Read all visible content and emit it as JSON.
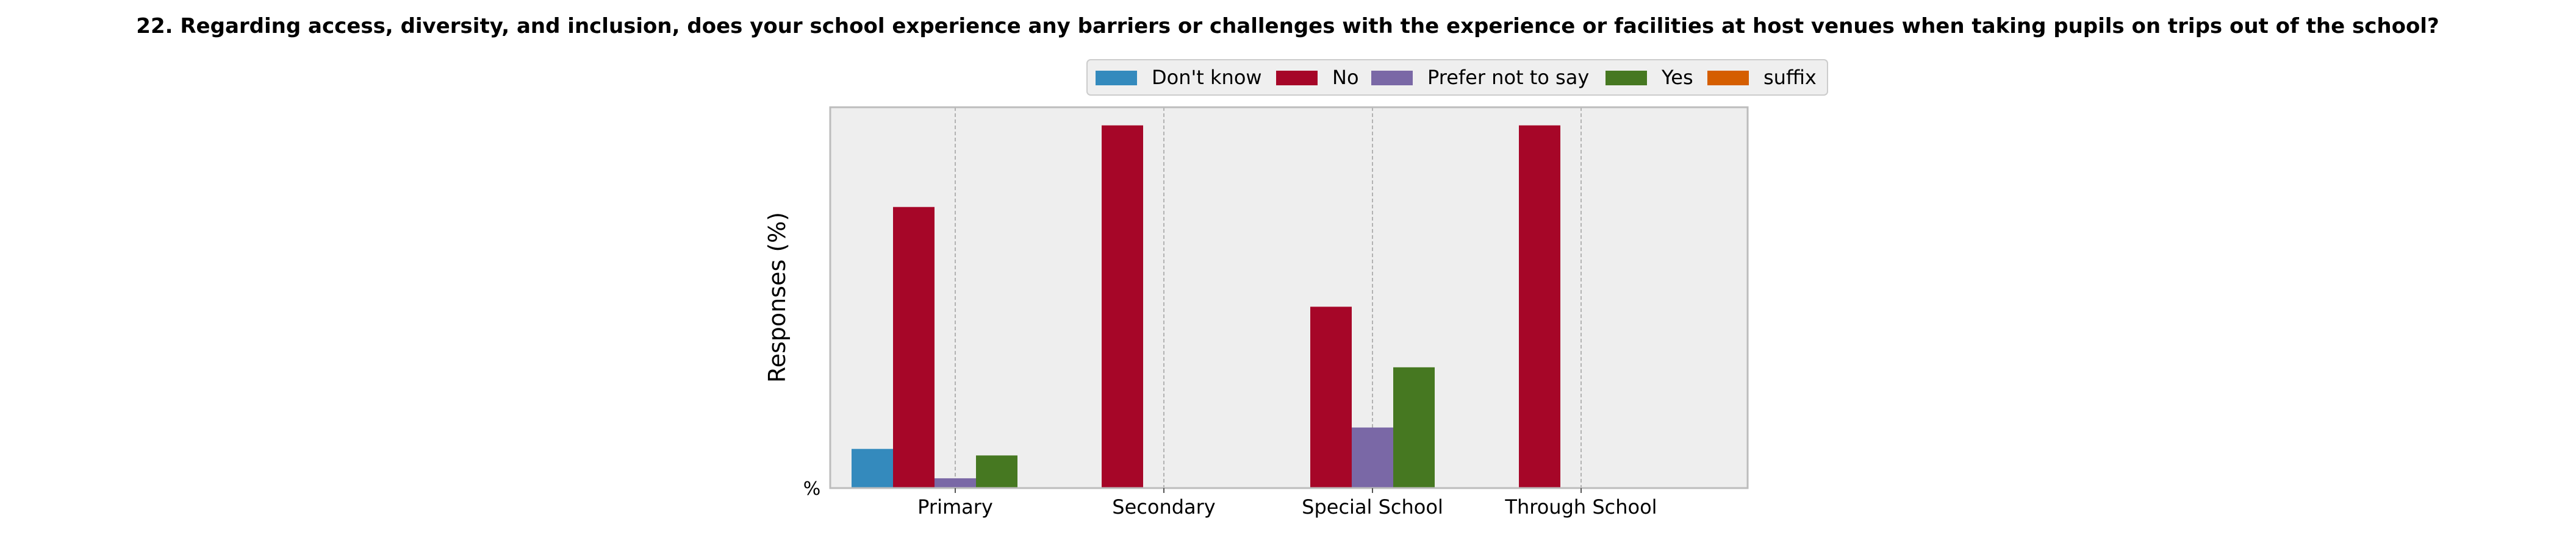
{
  "chart_data": {
    "type": "bar",
    "title": "22. Regarding access, diversity, and inclusion, does your school experience any barriers or challenges with the experience or facilities at host venues when taking pupils on trips out of the school?",
    "xlabel": "",
    "ylabel": "Responses (%)",
    "y_tick_label": "%",
    "categories": [
      "Primary",
      "Secondary",
      "Special School",
      "Through School"
    ],
    "series": [
      {
        "name": "Don't know",
        "color": "#348ABD",
        "values": [
          10.8,
          0,
          0,
          0
        ]
      },
      {
        "name": "No",
        "color": "#A60628",
        "values": [
          77.5,
          100,
          50,
          100
        ]
      },
      {
        "name": "Prefer not to say",
        "color": "#7A68A6",
        "values": [
          2.7,
          0,
          16.7,
          0
        ]
      },
      {
        "name": "Yes",
        "color": "#467821",
        "values": [
          9,
          0,
          33.3,
          0
        ]
      },
      {
        "name": "suffix",
        "color": "#D55E00",
        "values": [
          0,
          0,
          0,
          0
        ]
      }
    ],
    "ylim": [
      0,
      105
    ],
    "grid": true,
    "legend": "top-center"
  }
}
